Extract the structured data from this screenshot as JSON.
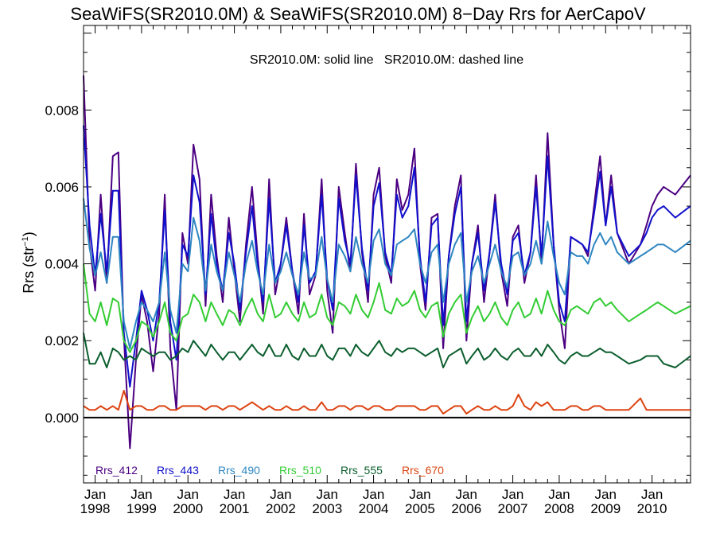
{
  "chart_data": {
    "type": "line",
    "title": "SeaWiFS(SR2010.0M) & SeaWiFS(SR2010.0M) 8−Day Rrs for AerCapoV",
    "subtitle": "SR2010.0M: solid line   SR2010.0M: dashed line",
    "ylabel": "Rrs (str",
    "ylabel_sup": "−1",
    "ylabel_end": ")",
    "xlabel": "",
    "xlim": [
      1997.75,
      2010.83
    ],
    "ylim": [
      -0.0017,
      0.0102
    ],
    "y_ticks": [
      0,
      0.002,
      0.004,
      0.006,
      0.008
    ],
    "y_tick_labels": [
      "0.000",
      "0.002",
      "0.004",
      "0.006",
      "0.008"
    ],
    "x_ticks": [
      1998,
      1999,
      2000,
      2001,
      2002,
      2003,
      2004,
      2005,
      2006,
      2007,
      2008,
      2009,
      2010
    ],
    "x_tick_labels_top": [
      "Jan",
      "Jan",
      "Jan",
      "Jan",
      "Jan",
      "Jan",
      "Jan",
      "Jan",
      "Jan",
      "Jan",
      "Jan",
      "Jan",
      "Jan"
    ],
    "x_tick_labels_bottom": [
      "1998",
      "1999",
      "2000",
      "2001",
      "2002",
      "2003",
      "2004",
      "2005",
      "2006",
      "2007",
      "2008",
      "2009",
      "2010"
    ],
    "zero_line": true,
    "legend_position": "bottom-left",
    "x": [
      1997.75,
      1997.88,
      1998.0,
      1998.12,
      1998.25,
      1998.38,
      1998.5,
      1998.62,
      1998.75,
      1998.88,
      1999.0,
      1999.12,
      1999.25,
      1999.38,
      1999.5,
      1999.62,
      1999.75,
      1999.88,
      2000.0,
      2000.12,
      2000.25,
      2000.38,
      2000.5,
      2000.62,
      2000.75,
      2000.88,
      2001.0,
      2001.12,
      2001.25,
      2001.38,
      2001.5,
      2001.62,
      2001.75,
      2001.88,
      2002.0,
      2002.12,
      2002.25,
      2002.38,
      2002.5,
      2002.62,
      2002.75,
      2002.88,
      2003.0,
      2003.12,
      2003.25,
      2003.38,
      2003.5,
      2003.62,
      2003.75,
      2003.88,
      2004.0,
      2004.12,
      2004.25,
      2004.38,
      2004.5,
      2004.62,
      2004.75,
      2004.88,
      2005.0,
      2005.12,
      2005.25,
      2005.38,
      2005.5,
      2005.62,
      2005.75,
      2005.88,
      2006.0,
      2006.12,
      2006.25,
      2006.38,
      2006.5,
      2006.62,
      2006.75,
      2006.88,
      2007.0,
      2007.12,
      2007.25,
      2007.38,
      2007.5,
      2007.62,
      2007.75,
      2007.88,
      2008.0,
      2008.12,
      2008.25,
      2008.38,
      2008.5,
      2008.62,
      2008.75,
      2008.88,
      2009.0,
      2009.12,
      2009.25,
      2009.5,
      2009.75,
      2009.88,
      2010.0,
      2010.12,
      2010.25,
      2010.5,
      2010.83
    ],
    "series": [
      {
        "name": "Rrs_412",
        "color": "#4b0082",
        "values": [
          0.0089,
          0.0045,
          0.0033,
          0.0058,
          0.0035,
          0.0068,
          0.0069,
          0.0021,
          -0.0008,
          0.0015,
          0.0032,
          0.0025,
          0.0012,
          0.0027,
          0.0058,
          0.0018,
          0.0002,
          0.0048,
          0.004,
          0.0071,
          0.0062,
          0.0029,
          0.0058,
          0.0042,
          0.003,
          0.0052,
          0.0038,
          0.0025,
          0.0045,
          0.006,
          0.0042,
          0.0027,
          0.0062,
          0.0032,
          0.004,
          0.0052,
          0.0038,
          0.0027,
          0.0053,
          0.0032,
          0.0037,
          0.0062,
          0.0033,
          0.0022,
          0.006,
          0.0048,
          0.0038,
          0.0066,
          0.0043,
          0.003,
          0.0058,
          0.0065,
          0.0042,
          0.0035,
          0.0062,
          0.0054,
          0.0058,
          0.007,
          0.004,
          0.0028,
          0.0052,
          0.0053,
          0.0018,
          0.0042,
          0.0055,
          0.0063,
          0.002,
          0.004,
          0.005,
          0.003,
          0.0043,
          0.0058,
          0.0038,
          0.0029,
          0.0047,
          0.005,
          0.0035,
          0.0043,
          0.0063,
          0.004,
          0.0074,
          0.0045,
          0.0028,
          0.0018,
          0.0047,
          0.0046,
          0.0045,
          0.0042,
          0.0055,
          0.0068,
          0.005,
          0.0063,
          0.0048,
          0.004,
          0.0045,
          0.005,
          0.0055,
          0.0058,
          0.006,
          0.0058,
          0.0063
        ]
      },
      {
        "name": "Rrs_443",
        "color": "#1010cc",
        "values": [
          0.0076,
          0.005,
          0.0037,
          0.0053,
          0.0038,
          0.0059,
          0.0059,
          0.0022,
          0.0008,
          0.002,
          0.0033,
          0.0028,
          0.002,
          0.003,
          0.0054,
          0.0025,
          0.0015,
          0.0045,
          0.0042,
          0.0063,
          0.0056,
          0.0032,
          0.0053,
          0.004,
          0.0033,
          0.0048,
          0.004,
          0.0028,
          0.0043,
          0.0055,
          0.004,
          0.003,
          0.0057,
          0.0035,
          0.004,
          0.005,
          0.0038,
          0.003,
          0.005,
          0.0035,
          0.0038,
          0.0058,
          0.0036,
          0.0028,
          0.0057,
          0.0046,
          0.004,
          0.0063,
          0.0044,
          0.0033,
          0.0055,
          0.0061,
          0.0043,
          0.0037,
          0.0058,
          0.0052,
          0.0055,
          0.0065,
          0.0042,
          0.003,
          0.005,
          0.0052,
          0.0024,
          0.0042,
          0.0053,
          0.006,
          0.0025,
          0.004,
          0.0048,
          0.0033,
          0.0043,
          0.0056,
          0.004,
          0.0032,
          0.0046,
          0.0048,
          0.0037,
          0.0043,
          0.006,
          0.0042,
          0.0068,
          0.0045,
          0.003,
          0.0025,
          0.0047,
          0.0046,
          0.0045,
          0.0043,
          0.0053,
          0.0064,
          0.005,
          0.006,
          0.0048,
          0.0042,
          0.0045,
          0.0048,
          0.0052,
          0.0054,
          0.0055,
          0.0052,
          0.0055
        ]
      },
      {
        "name": "Rrs_490",
        "color": "#2e86c1",
        "values": [
          0.0057,
          0.0044,
          0.0037,
          0.0043,
          0.0035,
          0.0047,
          0.0047,
          0.0025,
          0.0018,
          0.0025,
          0.003,
          0.0028,
          0.0025,
          0.003,
          0.0043,
          0.0028,
          0.0022,
          0.004,
          0.0038,
          0.0052,
          0.0046,
          0.0033,
          0.0045,
          0.0038,
          0.0033,
          0.0043,
          0.0037,
          0.003,
          0.004,
          0.0046,
          0.0038,
          0.0032,
          0.0045,
          0.0035,
          0.0038,
          0.0043,
          0.0037,
          0.0032,
          0.0043,
          0.0036,
          0.0037,
          0.0047,
          0.0036,
          0.003,
          0.0045,
          0.0042,
          0.0038,
          0.0047,
          0.004,
          0.0035,
          0.0046,
          0.0049,
          0.004,
          0.0037,
          0.0045,
          0.0046,
          0.0047,
          0.0049,
          0.004,
          0.0035,
          0.0043,
          0.0045,
          0.003,
          0.004,
          0.0045,
          0.0048,
          0.003,
          0.0038,
          0.0042,
          0.0035,
          0.004,
          0.0045,
          0.0038,
          0.0034,
          0.0042,
          0.0043,
          0.0037,
          0.004,
          0.0046,
          0.004,
          0.0051,
          0.0042,
          0.0035,
          0.0032,
          0.0043,
          0.0042,
          0.0042,
          0.004,
          0.0045,
          0.0048,
          0.0045,
          0.0047,
          0.0043,
          0.004,
          0.0042,
          0.0043,
          0.0044,
          0.0045,
          0.0045,
          0.0043,
          0.0046
        ]
      },
      {
        "name": "Rrs_510",
        "color": "#33cc33",
        "values": [
          0.004,
          0.0027,
          0.0025,
          0.003,
          0.0024,
          0.0031,
          0.003,
          0.002,
          0.0017,
          0.002,
          0.0025,
          0.0024,
          0.0021,
          0.0025,
          0.003,
          0.0022,
          0.002,
          0.0026,
          0.0027,
          0.0032,
          0.003,
          0.0025,
          0.003,
          0.0027,
          0.0024,
          0.0028,
          0.0027,
          0.0024,
          0.0028,
          0.0031,
          0.0027,
          0.0025,
          0.0032,
          0.0026,
          0.0027,
          0.003,
          0.0027,
          0.0025,
          0.003,
          0.0026,
          0.0027,
          0.0032,
          0.0026,
          0.0024,
          0.003,
          0.0029,
          0.0027,
          0.0032,
          0.0028,
          0.0026,
          0.003,
          0.0035,
          0.0028,
          0.0027,
          0.0031,
          0.0029,
          0.003,
          0.0033,
          0.0028,
          0.0026,
          0.0029,
          0.003,
          0.0021,
          0.0027,
          0.003,
          0.0032,
          0.0022,
          0.0026,
          0.0029,
          0.0025,
          0.0027,
          0.003,
          0.0026,
          0.0024,
          0.0028,
          0.003,
          0.0026,
          0.0027,
          0.0031,
          0.0027,
          0.0033,
          0.0028,
          0.0025,
          0.0024,
          0.0028,
          0.0029,
          0.0028,
          0.0027,
          0.003,
          0.0031,
          0.0029,
          0.003,
          0.0028,
          0.0025,
          0.0027,
          0.0028,
          0.0029,
          0.003,
          0.0029,
          0.0027,
          0.0029
        ]
      },
      {
        "name": "Rrs_555",
        "color": "#0b5e2e",
        "values": [
          0.0022,
          0.0014,
          0.0014,
          0.0017,
          0.0013,
          0.0018,
          0.0017,
          0.0015,
          0.0016,
          0.0015,
          0.0018,
          0.0017,
          0.0016,
          0.0017,
          0.0017,
          0.0015,
          0.0016,
          0.0018,
          0.0017,
          0.002,
          0.0018,
          0.0016,
          0.0019,
          0.0017,
          0.0015,
          0.0017,
          0.0017,
          0.0015,
          0.0017,
          0.0019,
          0.0017,
          0.0016,
          0.0019,
          0.0016,
          0.0016,
          0.0019,
          0.0016,
          0.0015,
          0.0018,
          0.0016,
          0.0016,
          0.0019,
          0.0016,
          0.0015,
          0.0018,
          0.0018,
          0.0016,
          0.0019,
          0.0017,
          0.0016,
          0.0018,
          0.002,
          0.0017,
          0.0016,
          0.0018,
          0.0017,
          0.0018,
          0.0018,
          0.0017,
          0.0016,
          0.0017,
          0.0018,
          0.0013,
          0.0016,
          0.0017,
          0.0018,
          0.0014,
          0.0016,
          0.0018,
          0.0015,
          0.0016,
          0.0018,
          0.0016,
          0.0015,
          0.0017,
          0.0018,
          0.0016,
          0.0016,
          0.0018,
          0.0016,
          0.0019,
          0.0017,
          0.0015,
          0.0014,
          0.0016,
          0.0017,
          0.0016,
          0.0016,
          0.0017,
          0.0018,
          0.0017,
          0.0017,
          0.0016,
          0.0014,
          0.0015,
          0.0016,
          0.0016,
          0.0016,
          0.0014,
          0.0013,
          0.0016
        ]
      },
      {
        "name": "Rrs_670",
        "color": "#dd4411",
        "values": [
          0.0003,
          0.0002,
          0.0002,
          0.0003,
          0.0002,
          0.0003,
          0.0002,
          0.0007,
          0.0002,
          0.0003,
          0.0003,
          0.0002,
          0.0002,
          0.0003,
          0.0003,
          0.0002,
          0.0002,
          0.0003,
          0.0003,
          0.0003,
          0.0003,
          0.0002,
          0.0003,
          0.0003,
          0.0002,
          0.0003,
          0.0003,
          0.0002,
          0.0003,
          0.0004,
          0.0003,
          0.0002,
          0.0003,
          0.0002,
          0.0002,
          0.0003,
          0.0002,
          0.0002,
          0.0003,
          0.0002,
          0.0002,
          0.0004,
          0.0002,
          0.0002,
          0.0003,
          0.0003,
          0.0002,
          0.0003,
          0.0003,
          0.0002,
          0.0003,
          0.0003,
          0.0002,
          0.0002,
          0.0003,
          0.0003,
          0.0003,
          0.0003,
          0.0002,
          0.0002,
          0.0003,
          0.0003,
          0.0001,
          0.0002,
          0.0003,
          0.0003,
          0.0001,
          0.0002,
          0.0003,
          0.0002,
          0.0002,
          0.0003,
          0.0002,
          0.0002,
          0.0003,
          0.0006,
          0.0003,
          0.0002,
          0.0004,
          0.0003,
          0.0004,
          0.0002,
          0.0002,
          0.0002,
          0.0003,
          0.0003,
          0.0002,
          0.0002,
          0.0003,
          0.0003,
          0.0002,
          0.0002,
          0.0002,
          0.0002,
          0.0005,
          0.0002,
          0.0002,
          0.0002,
          0.0002,
          0.0002,
          0.0002
        ]
      }
    ]
  }
}
